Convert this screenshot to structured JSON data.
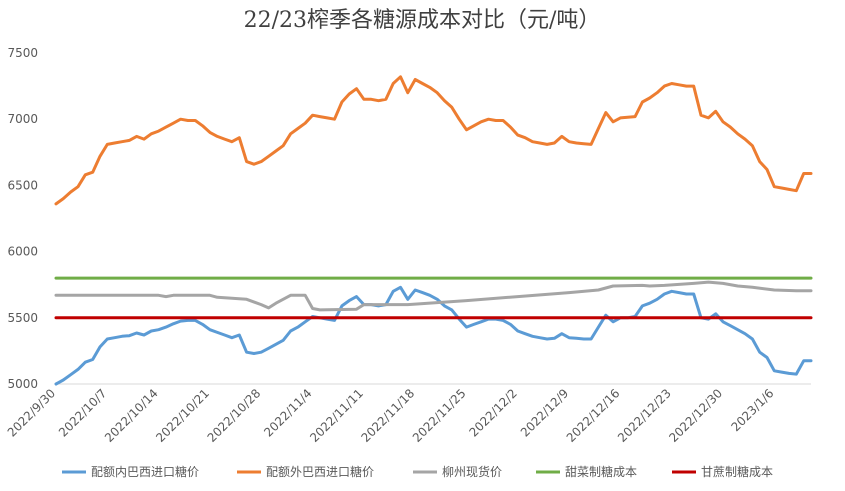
{
  "chart_data": {
    "type": "line",
    "title": "22/23榨季各糖源成本对比（元/吨）",
    "xlabel": "",
    "ylabel": "",
    "ylim": [
      5000,
      7500
    ],
    "yticks": [
      5000,
      5500,
      6000,
      6500,
      7000,
      7500
    ],
    "x_range": [
      "2022/9/30",
      "2023/1/11"
    ],
    "x_ticks": [
      "2022/9/30",
      "2022/10/7",
      "2022/10/14",
      "2022/10/21",
      "2022/10/28",
      "2022/11/4",
      "2022/11/11",
      "2022/11/18",
      "2022/11/25",
      "2022/12/2",
      "2022/12/9",
      "2022/12/16",
      "2022/12/23",
      "2022/12/30",
      "2023/1/6"
    ],
    "grid": false,
    "legend": "bottom",
    "series": [
      {
        "name": "配额内巴西进口糖价",
        "color": "#5B9BD5",
        "points": [
          [
            "2022/9/30",
            5000
          ],
          [
            "2022/10/1",
            5030
          ],
          [
            "2022/10/2",
            5070
          ],
          [
            "2022/10/3",
            5110
          ],
          [
            "2022/10/4",
            5165
          ],
          [
            "2022/10/5",
            5185
          ],
          [
            "2022/10/6",
            5280
          ],
          [
            "2022/10/7",
            5340
          ],
          [
            "2022/10/8",
            5350
          ],
          [
            "2022/10/9",
            5360
          ],
          [
            "2022/10/10",
            5365
          ],
          [
            "2022/10/11",
            5385
          ],
          [
            "2022/10/12",
            5370
          ],
          [
            "2022/10/13",
            5400
          ],
          [
            "2022/10/14",
            5410
          ],
          [
            "2022/10/15",
            5430
          ],
          [
            "2022/10/16",
            5455
          ],
          [
            "2022/10/17",
            5475
          ],
          [
            "2022/10/18",
            5480
          ],
          [
            "2022/10/19",
            5480
          ],
          [
            "2022/10/20",
            5450
          ],
          [
            "2022/10/21",
            5410
          ],
          [
            "2022/10/22",
            5390
          ],
          [
            "2022/10/23",
            5370
          ],
          [
            "2022/10/24",
            5350
          ],
          [
            "2022/10/25",
            5370
          ],
          [
            "2022/10/26",
            5240
          ],
          [
            "2022/10/27",
            5230
          ],
          [
            "2022/10/28",
            5240
          ],
          [
            "2022/10/29",
            5270
          ],
          [
            "2022/10/30",
            5300
          ],
          [
            "2022/10/31",
            5330
          ],
          [
            "2022/11/1",
            5400
          ],
          [
            "2022/11/2",
            5430
          ],
          [
            "2022/11/3",
            5470
          ],
          [
            "2022/11/4",
            5510
          ],
          [
            "2022/11/5",
            5500
          ],
          [
            "2022/11/6",
            5490
          ],
          [
            "2022/11/7",
            5480
          ],
          [
            "2022/11/8",
            5590
          ],
          [
            "2022/11/9",
            5630
          ],
          [
            "2022/11/10",
            5660
          ],
          [
            "2022/11/11",
            5600
          ],
          [
            "2022/11/12",
            5600
          ],
          [
            "2022/11/13",
            5590
          ],
          [
            "2022/11/14",
            5600
          ],
          [
            "2022/11/15",
            5700
          ],
          [
            "2022/11/16",
            5730
          ],
          [
            "2022/11/17",
            5640
          ],
          [
            "2022/11/18",
            5710
          ],
          [
            "2022/11/19",
            5690
          ],
          [
            "2022/11/20",
            5670
          ],
          [
            "2022/11/21",
            5640
          ],
          [
            "2022/11/22",
            5590
          ],
          [
            "2022/11/23",
            5560
          ],
          [
            "2022/11/24",
            5490
          ],
          [
            "2022/11/25",
            5430
          ],
          [
            "2022/11/26",
            5450
          ],
          [
            "2022/11/27",
            5470
          ],
          [
            "2022/11/28",
            5490
          ],
          [
            "2022/11/29",
            5490
          ],
          [
            "2022/11/30",
            5480
          ],
          [
            "2022/12/1",
            5450
          ],
          [
            "2022/12/2",
            5400
          ],
          [
            "2022/12/3",
            5380
          ],
          [
            "2022/12/4",
            5360
          ],
          [
            "2022/12/5",
            5350
          ],
          [
            "2022/12/6",
            5340
          ],
          [
            "2022/12/7",
            5345
          ],
          [
            "2022/12/8",
            5380
          ],
          [
            "2022/12/9",
            5350
          ],
          [
            "2022/12/10",
            5345
          ],
          [
            "2022/12/11",
            5340
          ],
          [
            "2022/12/12",
            5340
          ],
          [
            "2022/12/13",
            5430
          ],
          [
            "2022/12/14",
            5520
          ],
          [
            "2022/12/15",
            5470
          ],
          [
            "2022/12/16",
            5500
          ],
          [
            "2022/12/17",
            5500
          ],
          [
            "2022/12/18",
            5510
          ],
          [
            "2022/12/19",
            5590
          ],
          [
            "2022/12/20",
            5610
          ],
          [
            "2022/12/21",
            5640
          ],
          [
            "2022/12/22",
            5680
          ],
          [
            "2022/12/23",
            5700
          ],
          [
            "2022/12/24",
            5690
          ],
          [
            "2022/12/25",
            5680
          ],
          [
            "2022/12/26",
            5680
          ],
          [
            "2022/12/27",
            5500
          ],
          [
            "2022/12/28",
            5490
          ],
          [
            "2022/12/29",
            5530
          ],
          [
            "2022/12/30",
            5470
          ],
          [
            "2022/12/31",
            5440
          ],
          [
            "2023/1/1",
            5410
          ],
          [
            "2023/1/2",
            5380
          ],
          [
            "2023/1/3",
            5340
          ],
          [
            "2023/1/4",
            5240
          ],
          [
            "2023/1/5",
            5200
          ],
          [
            "2023/1/6",
            5100
          ],
          [
            "2023/1/7",
            5090
          ],
          [
            "2023/1/8",
            5080
          ],
          [
            "2023/1/9",
            5075
          ],
          [
            "2023/1/10",
            5175
          ],
          [
            "2023/1/11",
            5175
          ]
        ]
      },
      {
        "name": "配额外巴西进口糖价",
        "color": "#ED7D31",
        "points": [
          [
            "2022/9/30",
            6360
          ],
          [
            "2022/10/1",
            6400
          ],
          [
            "2022/10/2",
            6450
          ],
          [
            "2022/10/3",
            6490
          ],
          [
            "2022/10/4",
            6580
          ],
          [
            "2022/10/5",
            6600
          ],
          [
            "2022/10/6",
            6720
          ],
          [
            "2022/10/7",
            6810
          ],
          [
            "2022/10/8",
            6820
          ],
          [
            "2022/10/9",
            6830
          ],
          [
            "2022/10/10",
            6840
          ],
          [
            "2022/10/11",
            6870
          ],
          [
            "2022/10/12",
            6850
          ],
          [
            "2022/10/13",
            6890
          ],
          [
            "2022/10/14",
            6910
          ],
          [
            "2022/10/15",
            6940
          ],
          [
            "2022/10/16",
            6970
          ],
          [
            "2022/10/17",
            7000
          ],
          [
            "2022/10/18",
            6990
          ],
          [
            "2022/10/19",
            6990
          ],
          [
            "2022/10/20",
            6950
          ],
          [
            "2022/10/21",
            6900
          ],
          [
            "2022/10/22",
            6870
          ],
          [
            "2022/10/23",
            6850
          ],
          [
            "2022/10/24",
            6830
          ],
          [
            "2022/10/25",
            6860
          ],
          [
            "2022/10/26",
            6680
          ],
          [
            "2022/10/27",
            6660
          ],
          [
            "2022/10/28",
            6680
          ],
          [
            "2022/10/29",
            6720
          ],
          [
            "2022/10/30",
            6760
          ],
          [
            "2022/10/31",
            6800
          ],
          [
            "2022/11/1",
            6890
          ],
          [
            "2022/11/2",
            6930
          ],
          [
            "2022/11/3",
            6970
          ],
          [
            "2022/11/4",
            7030
          ],
          [
            "2022/11/5",
            7020
          ],
          [
            "2022/11/6",
            7010
          ],
          [
            "2022/11/7",
            7000
          ],
          [
            "2022/11/8",
            7130
          ],
          [
            "2022/11/9",
            7190
          ],
          [
            "2022/11/10",
            7230
          ],
          [
            "2022/11/11",
            7150
          ],
          [
            "2022/11/12",
            7150
          ],
          [
            "2022/11/13",
            7140
          ],
          [
            "2022/11/14",
            7150
          ],
          [
            "2022/11/15",
            7270
          ],
          [
            "2022/11/16",
            7320
          ],
          [
            "2022/11/17",
            7200
          ],
          [
            "2022/11/18",
            7300
          ],
          [
            "2022/11/19",
            7270
          ],
          [
            "2022/11/20",
            7240
          ],
          [
            "2022/11/21",
            7200
          ],
          [
            "2022/11/22",
            7140
          ],
          [
            "2022/11/23",
            7090
          ],
          [
            "2022/11/24",
            7000
          ],
          [
            "2022/11/25",
            6920
          ],
          [
            "2022/11/26",
            6950
          ],
          [
            "2022/11/27",
            6980
          ],
          [
            "2022/11/28",
            7000
          ],
          [
            "2022/11/29",
            6990
          ],
          [
            "2022/11/30",
            6990
          ],
          [
            "2022/12/1",
            6940
          ],
          [
            "2022/12/2",
            6880
          ],
          [
            "2022/12/3",
            6860
          ],
          [
            "2022/12/4",
            6830
          ],
          [
            "2022/12/5",
            6820
          ],
          [
            "2022/12/6",
            6810
          ],
          [
            "2022/12/7",
            6820
          ],
          [
            "2022/12/8",
            6870
          ],
          [
            "2022/12/9",
            6830
          ],
          [
            "2022/12/10",
            6820
          ],
          [
            "2022/12/11",
            6815
          ],
          [
            "2022/12/12",
            6810
          ],
          [
            "2022/12/13",
            6930
          ],
          [
            "2022/12/14",
            7050
          ],
          [
            "2022/12/15",
            6980
          ],
          [
            "2022/12/16",
            7010
          ],
          [
            "2022/12/17",
            7015
          ],
          [
            "2022/12/18",
            7020
          ],
          [
            "2022/12/19",
            7130
          ],
          [
            "2022/12/20",
            7160
          ],
          [
            "2022/12/21",
            7200
          ],
          [
            "2022/12/22",
            7250
          ],
          [
            "2022/12/23",
            7270
          ],
          [
            "2022/12/24",
            7260
          ],
          [
            "2022/12/25",
            7250
          ],
          [
            "2022/12/26",
            7250
          ],
          [
            "2022/12/27",
            7030
          ],
          [
            "2022/12/28",
            7010
          ],
          [
            "2022/12/29",
            7060
          ],
          [
            "2022/12/30",
            6980
          ],
          [
            "2022/12/31",
            6940
          ],
          [
            "2023/1/1",
            6890
          ],
          [
            "2023/1/2",
            6850
          ],
          [
            "2023/1/3",
            6800
          ],
          [
            "2023/1/4",
            6680
          ],
          [
            "2023/1/5",
            6620
          ],
          [
            "2023/1/6",
            6490
          ],
          [
            "2023/1/7",
            6480
          ],
          [
            "2023/1/8",
            6470
          ],
          [
            "2023/1/9",
            6460
          ],
          [
            "2023/1/10",
            6590
          ],
          [
            "2023/1/11",
            6590
          ]
        ]
      },
      {
        "name": "柳州现货价",
        "color": "#A5A5A5",
        "points": [
          [
            "2022/9/30",
            5670
          ],
          [
            "2022/10/14",
            5670
          ],
          [
            "2022/10/15",
            5660
          ],
          [
            "2022/10/16",
            5670
          ],
          [
            "2022/10/21",
            5670
          ],
          [
            "2022/10/22",
            5655
          ],
          [
            "2022/10/26",
            5640
          ],
          [
            "2022/10/28",
            5600
          ],
          [
            "2022/10/29",
            5575
          ],
          [
            "2022/10/30",
            5610
          ],
          [
            "2022/11/1",
            5670
          ],
          [
            "2022/11/3",
            5670
          ],
          [
            "2022/11/4",
            5570
          ],
          [
            "2022/11/5",
            5560
          ],
          [
            "2022/11/10",
            5565
          ],
          [
            "2022/11/11",
            5600
          ],
          [
            "2022/11/17",
            5600
          ],
          [
            "2022/11/25",
            5630
          ],
          [
            "2022/12/2",
            5660
          ],
          [
            "2022/12/9",
            5690
          ],
          [
            "2022/12/13",
            5710
          ],
          [
            "2022/12/15",
            5740
          ],
          [
            "2022/12/19",
            5745
          ],
          [
            "2022/12/20",
            5740
          ],
          [
            "2022/12/22",
            5745
          ],
          [
            "2022/12/26",
            5760
          ],
          [
            "2022/12/28",
            5770
          ],
          [
            "2022/12/30",
            5760
          ],
          [
            "2023/1/1",
            5740
          ],
          [
            "2023/1/3",
            5730
          ],
          [
            "2023/1/6",
            5710
          ],
          [
            "2023/1/9",
            5705
          ],
          [
            "2023/1/11",
            5705
          ]
        ]
      },
      {
        "name": "甜菜制糖成本",
        "color": "#70AD47",
        "points": [
          [
            "2022/9/30",
            5800
          ],
          [
            "2023/1/11",
            5800
          ]
        ]
      },
      {
        "name": "甘蔗制糖成本",
        "color": "#C00000",
        "points": [
          [
            "2022/9/30",
            5500
          ],
          [
            "2023/1/11",
            5500
          ]
        ]
      }
    ]
  }
}
